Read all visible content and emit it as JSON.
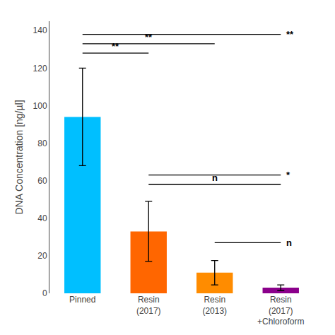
{
  "chart_data": {
    "type": "bar",
    "categories": [
      "Pinned",
      "Resin\n(2017)",
      "Resin\n(2013)",
      "Resin\n(2017)\n+Chloroform"
    ],
    "values": [
      94.0,
      33.0,
      11.0,
      3.0
    ],
    "errors": [
      26.0,
      16.0,
      6.5,
      1.5
    ],
    "colors": [
      "#00BFFF",
      "#FF6600",
      "#FF8C00",
      "#8B008B"
    ],
    "ylabel": "DNA Concentration [ng/µl]",
    "ylim": [
      0,
      145
    ],
    "yticks": [
      0,
      20,
      40,
      60,
      80,
      100,
      120,
      140
    ],
    "grid": false,
    "annotations": [
      {
        "text": "**",
        "from": "Pinned",
        "to": "Resin\n(2017)",
        "y": 128,
        "position": "mid"
      },
      {
        "text": "**",
        "from": "Pinned",
        "to": "Resin\n(2013)",
        "y": 133,
        "position": "mid"
      },
      {
        "text": "**",
        "from": "Pinned",
        "to": "Resin\n(2017)\n+Chloroform",
        "y": 138,
        "position": "right"
      },
      {
        "text": "n",
        "from": "Resin\n(2017)",
        "to": "Resin\n(2017)\n+Chloroform",
        "y": 58,
        "position": "mid"
      },
      {
        "text": "*",
        "from": "Resin\n(2017)",
        "to": "Resin\n(2017)\n+Chloroform",
        "y": 63,
        "position": "right"
      },
      {
        "text": "n",
        "from": "Resin\n(2013)",
        "to": "Resin\n(2017)\n+Chloroform",
        "y": 27,
        "position": "right"
      }
    ]
  }
}
